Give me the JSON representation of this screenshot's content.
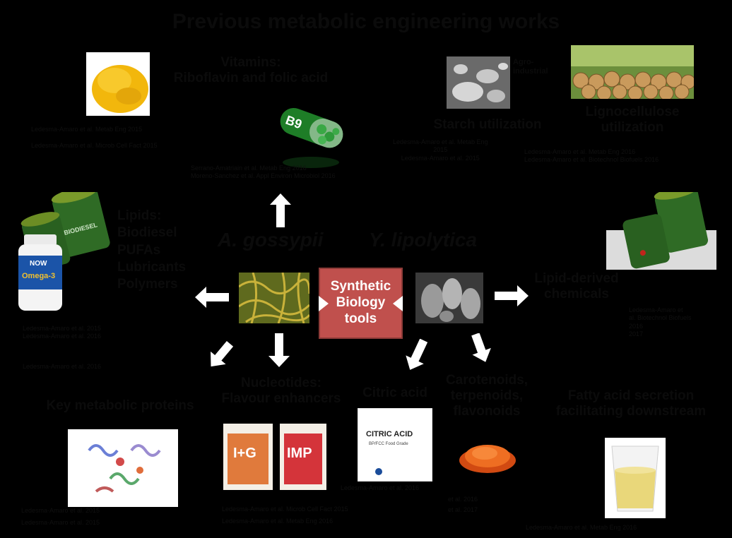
{
  "title": "Previous metabolic engineering works",
  "center_box": {
    "line1": "Synthetic",
    "line2": "Biology",
    "line3": "tools"
  },
  "species": {
    "left": "A. gossypii",
    "right": "Y. lipolytica"
  },
  "nodes": {
    "vitamins": {
      "line1": "Vitamins:",
      "line2": "Riboflavin and folic acid"
    },
    "starch": "Starch utilization",
    "starch_side": {
      "line1": "Agro-",
      "line2": "industrial"
    },
    "lignocellulose": {
      "line1": "Lignocellulose",
      "line2": "utilization"
    },
    "lipids": [
      "Lipids:",
      "Biodiesel",
      "PUFAs",
      "Lubricants",
      "Polymers"
    ],
    "lipid_chemicals": {
      "line1": "Lipid-derived",
      "line2": "chemicals"
    },
    "key_proteins": "Key metabolic proteins",
    "nucleotides": {
      "line1": "Nucleotides:",
      "line2": "Flavour enhancers"
    },
    "citric": "Citric acid",
    "carotenoids": {
      "line1": "Carotenoids,",
      "line2": "terpenoids,",
      "line3": "flavonoids"
    },
    "fatty_acid": {
      "line1": "Fatty acid secretion",
      "line2": "facilitating downstream"
    }
  },
  "images": {
    "b9_label": "B9",
    "citric_bag": {
      "line1": "CITRIC ACID",
      "line2": "BP/FCC Food Grade"
    },
    "pack_ig": "I+G",
    "pack_imp": "IMP",
    "omega": "Omega-3",
    "now": "NOW",
    "biodiesel": "BIODIESEL"
  },
  "refs": {
    "vitamins": [
      "Ledesma-Amaro et al. Metab Eng 2015",
      "Ledesma-Amaro et al. Microb Cell Fact 2015"
    ],
    "b9": [
      "Serrano-Amatriain et al. Metab Eng 2016",
      "Moreno-Sanchez et al. Appl Environ Microbiol 2016"
    ],
    "starch": [
      "Ledesma-Amaro et al. Metab Eng",
      "2015",
      "Ledesma-Amaro et al. 2015"
    ],
    "lignocellulose": [
      "Ledesma-Amaro et al. Metab Eng 2016",
      "Ledesma-Amaro et al. Biotechnol Biofuels 2016"
    ],
    "lipids": [
      "Ledesma-Amaro et al. 2015",
      "Ledesma-Amaro et al. 2016"
    ],
    "lipids_extra": [
      "Ledesma-Amaro et al. 2016"
    ],
    "lipid_chem": [
      "Ledesma-Amaro et",
      "al. Biotechnol Biofuels",
      "2016",
      "2017"
    ],
    "key_proteins": [
      "Ledesma-Amaro et al. 2015",
      "Ledesma-Amaro et al. 2015"
    ],
    "nucleotides": [
      "Ledesma-Amaro et al. Microb Cell Fact 2015",
      "Ledesma-Amaro et al. Metab Eng 2016"
    ],
    "citric": [
      "Ledesma-Amaro et al. 2016"
    ],
    "carotenoids": [
      "et al. 2016",
      "et al. 2017"
    ],
    "fatty_acid": [
      "Ledesma-Amaro et al. Metab Eng 2016"
    ]
  },
  "colors": {
    "background": "#000000",
    "center_box": "#c0504d",
    "arrow": "#ffffff",
    "text": "#0b0b0b"
  }
}
